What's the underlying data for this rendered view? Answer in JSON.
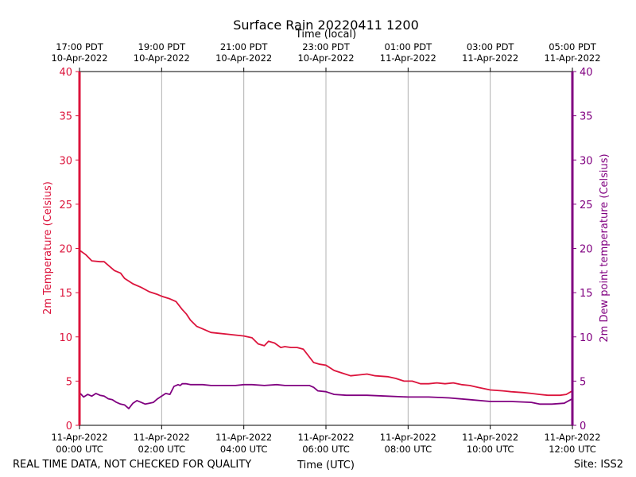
{
  "chart_data": {
    "type": "line",
    "title": "Surface Rain 20220411 1200",
    "top_axis_label": "Time (local)",
    "xlabel": "Time (UTC)",
    "ylabel_left": "2m Temperature (Celsius)",
    "ylabel_right": "2m Dew point temperature (Celsius)",
    "xlim_hours": [
      0,
      12
    ],
    "ylim": [
      0,
      40
    ],
    "y_ticks": [
      "0",
      "5",
      "10",
      "15",
      "20",
      "25",
      "30",
      "35",
      "40"
    ],
    "bottom_ticks": [
      {
        "hour": 0,
        "line1": "11-Apr-2022",
        "line2": "00:00 UTC"
      },
      {
        "hour": 2,
        "line1": "11-Apr-2022",
        "line2": "02:00 UTC"
      },
      {
        "hour": 4,
        "line1": "11-Apr-2022",
        "line2": "04:00 UTC"
      },
      {
        "hour": 6,
        "line1": "11-Apr-2022",
        "line2": "06:00 UTC"
      },
      {
        "hour": 8,
        "line1": "11-Apr-2022",
        "line2": "08:00 UTC"
      },
      {
        "hour": 10,
        "line1": "11-Apr-2022",
        "line2": "10:00 UTC"
      },
      {
        "hour": 12,
        "line1": "11-Apr-2022",
        "line2": "12:00 UTC"
      }
    ],
    "top_ticks": [
      {
        "hour": 0,
        "line1": "17:00 PDT",
        "line2": "10-Apr-2022"
      },
      {
        "hour": 2,
        "line1": "19:00 PDT",
        "line2": "10-Apr-2022"
      },
      {
        "hour": 4,
        "line1": "21:00 PDT",
        "line2": "10-Apr-2022"
      },
      {
        "hour": 6,
        "line1": "23:00 PDT",
        "line2": "10-Apr-2022"
      },
      {
        "hour": 8,
        "line1": "01:00 PDT",
        "line2": "11-Apr-2022"
      },
      {
        "hour": 10,
        "line1": "03:00 PDT",
        "line2": "11-Apr-2022"
      },
      {
        "hour": 12,
        "line1": "05:00 PDT",
        "line2": "11-Apr-2022"
      }
    ],
    "series": [
      {
        "name": "2m Temperature",
        "color": "#dc143c",
        "x": [
          0,
          0.15,
          0.3,
          0.5,
          0.6,
          0.75,
          0.85,
          1.0,
          1.1,
          1.3,
          1.5,
          1.7,
          1.9,
          2.0,
          2.2,
          2.35,
          2.5,
          2.6,
          2.7,
          2.85,
          3.0,
          3.2,
          3.4,
          3.6,
          3.8,
          4.0,
          4.2,
          4.35,
          4.5,
          4.6,
          4.75,
          4.9,
          5.0,
          5.15,
          5.3,
          5.45,
          5.55,
          5.7,
          5.85,
          6.0,
          6.2,
          6.4,
          6.6,
          6.8,
          7.0,
          7.2,
          7.5,
          7.7,
          7.9,
          8.1,
          8.3,
          8.5,
          8.7,
          8.9,
          9.1,
          9.3,
          9.5,
          9.7,
          10.0,
          10.3,
          10.5,
          10.8,
          11.0,
          11.2,
          11.4,
          11.7,
          11.85,
          12.0
        ],
        "y": [
          19.8,
          19.3,
          18.6,
          18.5,
          18.5,
          17.9,
          17.5,
          17.2,
          16.6,
          16.0,
          15.6,
          15.1,
          14.8,
          14.6,
          14.3,
          14.0,
          13.1,
          12.6,
          11.9,
          11.2,
          10.9,
          10.5,
          10.4,
          10.3,
          10.2,
          10.1,
          9.9,
          9.2,
          9.0,
          9.5,
          9.3,
          8.8,
          8.9,
          8.8,
          8.8,
          8.6,
          8.0,
          7.1,
          6.9,
          6.8,
          6.2,
          5.9,
          5.6,
          5.7,
          5.8,
          5.6,
          5.5,
          5.3,
          5.0,
          5.0,
          4.7,
          4.7,
          4.8,
          4.7,
          4.8,
          4.6,
          4.5,
          4.3,
          4.0,
          3.9,
          3.8,
          3.7,
          3.6,
          3.5,
          3.4,
          3.4,
          3.5,
          3.9
        ]
      },
      {
        "name": "2m Dew point temperature",
        "color": "#800080",
        "x": [
          0,
          0.1,
          0.2,
          0.3,
          0.4,
          0.5,
          0.6,
          0.7,
          0.8,
          0.9,
          1.0,
          1.1,
          1.2,
          1.3,
          1.4,
          1.5,
          1.6,
          1.7,
          1.8,
          1.9,
          2.0,
          2.1,
          2.2,
          2.3,
          2.4,
          2.45,
          2.5,
          2.6,
          2.7,
          2.8,
          3.0,
          3.2,
          3.5,
          3.8,
          4.0,
          4.2,
          4.5,
          4.8,
          5.0,
          5.3,
          5.5,
          5.6,
          5.7,
          5.8,
          6.0,
          6.2,
          6.5,
          7.0,
          7.5,
          8.0,
          8.5,
          9.0,
          9.5,
          10.0,
          10.5,
          11.0,
          11.2,
          11.5,
          11.8,
          12.0
        ],
        "y": [
          3.7,
          3.2,
          3.5,
          3.3,
          3.6,
          3.4,
          3.3,
          3.0,
          2.9,
          2.6,
          2.4,
          2.3,
          1.9,
          2.5,
          2.8,
          2.6,
          2.4,
          2.5,
          2.6,
          3.0,
          3.3,
          3.6,
          3.5,
          4.4,
          4.6,
          4.5,
          4.7,
          4.7,
          4.6,
          4.6,
          4.6,
          4.5,
          4.5,
          4.5,
          4.6,
          4.6,
          4.5,
          4.6,
          4.5,
          4.5,
          4.5,
          4.5,
          4.3,
          3.9,
          3.8,
          3.5,
          3.4,
          3.4,
          3.3,
          3.2,
          3.2,
          3.1,
          2.9,
          2.7,
          2.7,
          2.6,
          2.4,
          2.4,
          2.5,
          3.0
        ]
      }
    ]
  },
  "footer": {
    "left": "REAL TIME DATA, NOT CHECKED FOR QUALITY",
    "right": "Site: ISS2"
  },
  "colors": {
    "temperature": "#dc143c",
    "dewpoint": "#800080",
    "grid": "#b0b0b0"
  }
}
